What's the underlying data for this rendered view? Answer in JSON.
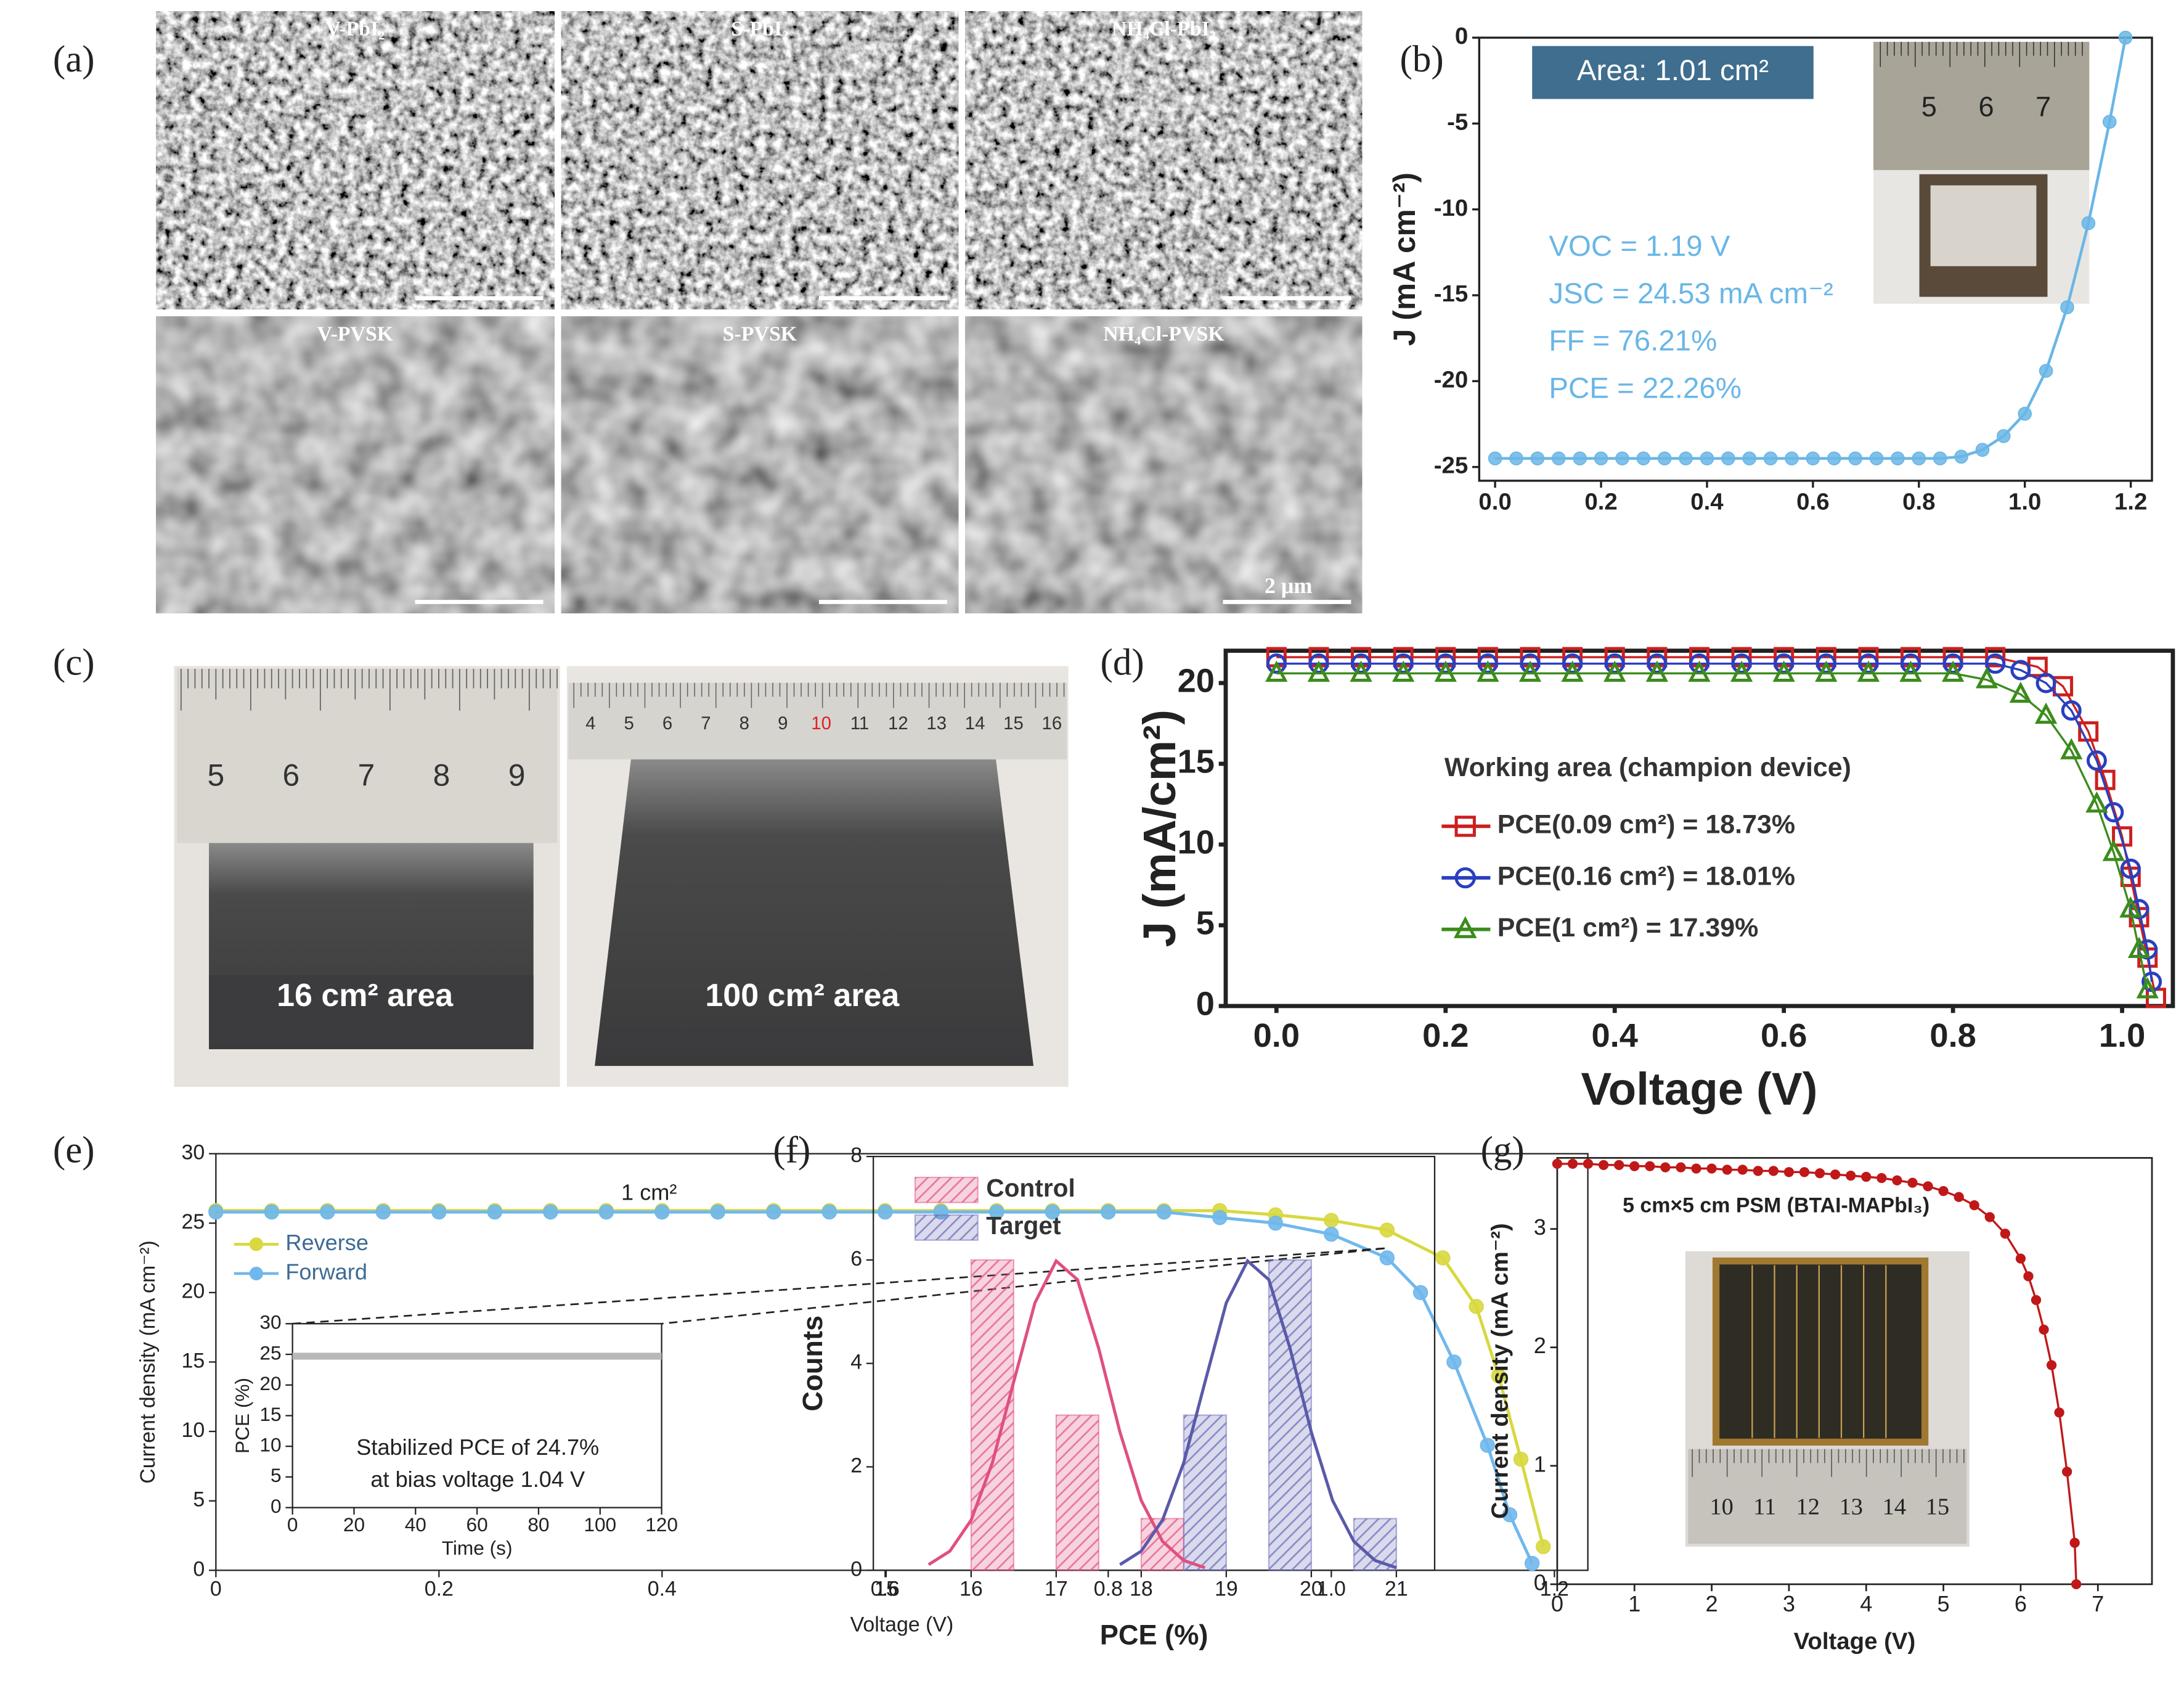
{
  "figure": {
    "panel_labels": [
      "(a)",
      "(b)",
      "(c)",
      "(d)",
      "(e)",
      "(f)",
      "(g)"
    ],
    "sem": {
      "labels": [
        "V-PbI₂",
        "S-PbI₂",
        "NH₄Cl-PbI₂",
        "V-PVSK",
        "S-PVSK",
        "NH₄Cl-PVSK"
      ],
      "scale_label": "2 μm"
    },
    "photo_c": {
      "left_ruler": [
        "5",
        "6",
        "7",
        "8",
        "9"
      ],
      "left_caption": "16 cm² area",
      "right_ruler": [
        "4",
        "5",
        "6",
        "7",
        "8",
        "9",
        "10",
        "11",
        "12",
        "13",
        "14",
        "15",
        "16"
      ],
      "right_caption": "100 cm² area"
    }
  },
  "chart_data": [
    {
      "type": "line",
      "ylabel": "J (mA cm⁻²)",
      "annotations": [
        "Area: 1.01 cm²",
        "VOC = 1.19 V",
        "JSC = 24.53 mA cm⁻²",
        "FF = 76.21%",
        "PCE = 22.26%"
      ],
      "inset_ruler": [
        "5",
        "6",
        "7"
      ],
      "xlim": [
        -0.03,
        1.24
      ],
      "ylim": [
        -25.8,
        0
      ],
      "xticks": [
        {
          "value": 0,
          "label": "0.0"
        },
        0.2,
        0.4,
        0.6,
        0.8,
        {
          "value": 1,
          "label": "1.0"
        },
        1.2
      ],
      "yticks": [
        -25,
        -20,
        -15,
        -10,
        -5,
        0
      ],
      "x": [
        0,
        0.04,
        0.08,
        0.12,
        0.16,
        0.2,
        0.24,
        0.28,
        0.32,
        0.36,
        0.4,
        0.44,
        0.48,
        0.52,
        0.56,
        0.6,
        0.64,
        0.68,
        0.72,
        0.76,
        0.8,
        0.84,
        0.88,
        0.92,
        0.96,
        1.0,
        1.04,
        1.08,
        1.12,
        1.16,
        1.19
      ],
      "series": [
        {
          "color": "#6ab6e6",
          "marker": "circle",
          "values": [
            -24.5,
            -24.5,
            -24.5,
            -24.5,
            -24.5,
            -24.5,
            -24.5,
            -24.5,
            -24.5,
            -24.5,
            -24.5,
            -24.5,
            -24.5,
            -24.5,
            -24.5,
            -24.5,
            -24.5,
            -24.5,
            -24.5,
            -24.5,
            -24.5,
            -24.5,
            -24.4,
            -24.0,
            -23.2,
            -21.9,
            -19.4,
            -15.7,
            -10.8,
            -4.9,
            0
          ]
        }
      ]
    },
    {
      "type": "line",
      "xlabel": "Voltage (V)",
      "ylabel": "J (mA/cm²)",
      "legend_title": "Working area (champion device)",
      "xlim": [
        -0.06,
        1.06
      ],
      "ylim": [
        0,
        22
      ],
      "xticks": [
        {
          "value": 0,
          "label": "0.0"
        },
        0.2,
        0.4,
        0.6,
        0.8,
        {
          "value": 1,
          "label": "1.0"
        }
      ],
      "yticks": [
        0,
        5,
        10,
        15,
        20
      ],
      "series": [
        {
          "name": "PCE(0.09 cm²) =  18.73%",
          "color": "#cc1f1f",
          "marker": "square",
          "x": [
            0,
            0.05,
            0.1,
            0.15,
            0.2,
            0.25,
            0.3,
            0.35,
            0.4,
            0.45,
            0.5,
            0.55,
            0.6,
            0.65,
            0.7,
            0.75,
            0.8,
            0.85,
            0.9,
            0.93,
            0.96,
            0.98,
            1.0,
            1.01,
            1.02,
            1.03,
            1.04
          ],
          "values": [
            21.6,
            21.6,
            21.6,
            21.6,
            21.6,
            21.6,
            21.6,
            21.6,
            21.6,
            21.6,
            21.6,
            21.6,
            21.6,
            21.6,
            21.6,
            21.6,
            21.6,
            21.6,
            21.0,
            19.8,
            17.0,
            14.0,
            10.5,
            8.0,
            5.5,
            3.0,
            0.5
          ]
        },
        {
          "name": "PCE(0.16 cm²) = 18.01%",
          "color": "#2a3fbf",
          "marker": "circle",
          "x": [
            0,
            0.05,
            0.1,
            0.15,
            0.2,
            0.25,
            0.3,
            0.35,
            0.4,
            0.45,
            0.5,
            0.55,
            0.6,
            0.65,
            0.7,
            0.75,
            0.8,
            0.85,
            0.88,
            0.91,
            0.94,
            0.97,
            0.99,
            1.01,
            1.02,
            1.03,
            1.035
          ],
          "values": [
            21.2,
            21.2,
            21.2,
            21.2,
            21.2,
            21.2,
            21.2,
            21.2,
            21.2,
            21.2,
            21.2,
            21.2,
            21.2,
            21.2,
            21.2,
            21.2,
            21.2,
            21.2,
            20.8,
            20.0,
            18.3,
            15.2,
            12.0,
            8.5,
            6.0,
            3.5,
            1.5
          ]
        },
        {
          "name": "PCE(1 cm²) = 17.39%",
          "color": "#3c8c1c",
          "marker": "triangle",
          "x": [
            0,
            0.05,
            0.1,
            0.15,
            0.2,
            0.25,
            0.3,
            0.35,
            0.4,
            0.45,
            0.5,
            0.55,
            0.6,
            0.65,
            0.7,
            0.75,
            0.8,
            0.84,
            0.88,
            0.91,
            0.94,
            0.97,
            0.99,
            1.01,
            1.02,
            1.03
          ],
          "values": [
            20.6,
            20.6,
            20.6,
            20.6,
            20.6,
            20.6,
            20.6,
            20.6,
            20.6,
            20.6,
            20.6,
            20.6,
            20.6,
            20.6,
            20.6,
            20.6,
            20.6,
            20.2,
            19.3,
            18.0,
            15.8,
            12.5,
            9.5,
            6.0,
            3.5,
            1.0
          ]
        }
      ]
    },
    {
      "type": "line",
      "xlabel": "Voltage (V)",
      "ylabel": "Current density (mA cm⁻²)",
      "annotations": [
        "1 cm²"
      ],
      "legend": "upper left",
      "xlim": [
        0,
        1.23
      ],
      "ylim": [
        0,
        30
      ],
      "xticks": [
        0,
        0.2,
        0.4,
        0.6,
        0.8,
        {
          "value": 1,
          "label": "1.0"
        },
        1.2
      ],
      "yticks": [
        0,
        5,
        10,
        15,
        20,
        25,
        30
      ],
      "series": [
        {
          "name": "Reverse",
          "color": "#d8d840",
          "marker": "circle",
          "x": [
            0,
            0.05,
            0.1,
            0.15,
            0.2,
            0.25,
            0.3,
            0.35,
            0.4,
            0.45,
            0.5,
            0.55,
            0.6,
            0.65,
            0.7,
            0.75,
            0.8,
            0.85,
            0.9,
            0.95,
            1.0,
            1.05,
            1.1,
            1.13,
            1.15,
            1.17,
            1.19
          ],
          "values": [
            25.9,
            25.9,
            25.9,
            25.9,
            25.9,
            25.9,
            25.9,
            25.9,
            25.9,
            25.9,
            25.9,
            25.9,
            25.9,
            25.9,
            25.9,
            25.9,
            25.9,
            25.9,
            25.9,
            25.6,
            25.2,
            24.5,
            22.5,
            19,
            14,
            8,
            1.7
          ]
        },
        {
          "name": "Forward",
          "color": "#70b8ec",
          "marker": "circle",
          "x": [
            0,
            0.05,
            0.1,
            0.15,
            0.2,
            0.25,
            0.3,
            0.35,
            0.4,
            0.45,
            0.5,
            0.55,
            0.6,
            0.65,
            0.7,
            0.75,
            0.8,
            0.85,
            0.9,
            0.95,
            1.0,
            1.05,
            1.08,
            1.11,
            1.14,
            1.16,
            1.18
          ],
          "values": [
            25.8,
            25.8,
            25.8,
            25.8,
            25.8,
            25.8,
            25.8,
            25.8,
            25.8,
            25.8,
            25.8,
            25.8,
            25.8,
            25.8,
            25.8,
            25.8,
            25.8,
            25.8,
            25.4,
            25.0,
            24.2,
            22.5,
            20,
            15,
            9,
            4,
            0.5
          ]
        }
      ]
    },
    {
      "type": "line",
      "xlabel": "Time (s)",
      "ylabel": "PCE (%)",
      "annotations": [
        "Stabilized PCE of 24.7%",
        "at bias voltage 1.04 V"
      ],
      "xlim": [
        0,
        120
      ],
      "ylim": [
        0,
        30
      ],
      "xticks": [
        0,
        20,
        40,
        60,
        80,
        100,
        120
      ],
      "yticks": [
        0,
        5,
        10,
        15,
        20,
        25,
        30
      ],
      "series": [
        {
          "color": "#b8b8b8",
          "x": [
            0,
            120
          ],
          "values": [
            24.7,
            24.7
          ]
        }
      ]
    },
    {
      "type": "bar",
      "xlabel": "PCE (%)",
      "ylabel": "Counts",
      "legend": "upper left",
      "xlim": [
        14.85,
        21.45
      ],
      "ylim": [
        0,
        8
      ],
      "bar_width": 0.5,
      "xticks": [
        15,
        16,
        17,
        18,
        19,
        20,
        21
      ],
      "yticks": [
        0,
        2,
        4,
        6,
        8
      ],
      "series": [
        {
          "name": "Control",
          "color": "#e0507e",
          "x": [
            16.25,
            17.25,
            18.25
          ],
          "values": [
            6,
            3,
            1
          ]
        },
        {
          "name": "Target",
          "color": "#6a6ab8",
          "x": [
            18.75,
            19.75,
            20.75
          ],
          "values": [
            3,
            6,
            1
          ]
        }
      ],
      "fit_series": [
        {
          "color": "#e0507e",
          "x": [
            15.5,
            15.75,
            16.0,
            16.25,
            16.5,
            16.75,
            17.0,
            17.25,
            17.5,
            17.75,
            18.0,
            18.25,
            18.5,
            18.75
          ],
          "values": [
            0.11,
            0.37,
            0.97,
            2.08,
            3.64,
            5.17,
            5.98,
            5.62,
            4.29,
            2.67,
            1.35,
            0.56,
            0.19,
            0.05
          ]
        },
        {
          "color": "#5a5aaa",
          "x": [
            17.75,
            18.0,
            18.25,
            18.5,
            18.75,
            19.0,
            19.25,
            19.5,
            19.75,
            20.0,
            20.25,
            20.5,
            20.75,
            21.0
          ],
          "values": [
            0.11,
            0.37,
            0.97,
            2.08,
            3.64,
            5.17,
            5.98,
            5.62,
            4.29,
            2.67,
            1.35,
            0.56,
            0.19,
            0.05
          ]
        }
      ]
    },
    {
      "type": "line",
      "xlabel": "Voltage (V)",
      "ylabel": "Current density (mA cm⁻²)",
      "annotations": [
        "5 cm×5 cm PSM (BTAI-MAPbI₃)"
      ],
      "inset_ruler": [
        "10",
        "11",
        "12",
        "13",
        "14",
        "15"
      ],
      "xlim": [
        0,
        7.7
      ],
      "ylim": [
        0,
        3.6
      ],
      "xticks": [
        0,
        1,
        2,
        3,
        4,
        5,
        6,
        7
      ],
      "yticks": [
        0,
        1,
        2,
        3
      ],
      "series": [
        {
          "color": "#c01818",
          "marker": "circle",
          "x": [
            0,
            0.2,
            0.4,
            0.6,
            0.8,
            1.0,
            1.2,
            1.4,
            1.6,
            1.8,
            2.0,
            2.2,
            2.4,
            2.6,
            2.8,
            3.0,
            3.2,
            3.4,
            3.6,
            3.8,
            4.0,
            4.2,
            4.4,
            4.6,
            4.8,
            5.0,
            5.2,
            5.4,
            5.6,
            5.8,
            6.0,
            6.1,
            6.2,
            6.3,
            6.4,
            6.5,
            6.6,
            6.7,
            6.72
          ],
          "values": [
            3.55,
            3.55,
            3.55,
            3.54,
            3.54,
            3.53,
            3.53,
            3.52,
            3.52,
            3.51,
            3.51,
            3.5,
            3.5,
            3.49,
            3.49,
            3.48,
            3.48,
            3.47,
            3.46,
            3.45,
            3.44,
            3.43,
            3.41,
            3.39,
            3.36,
            3.32,
            3.27,
            3.2,
            3.1,
            2.96,
            2.75,
            2.6,
            2.4,
            2.15,
            1.85,
            1.45,
            0.95,
            0.35,
            0
          ]
        }
      ]
    }
  ]
}
